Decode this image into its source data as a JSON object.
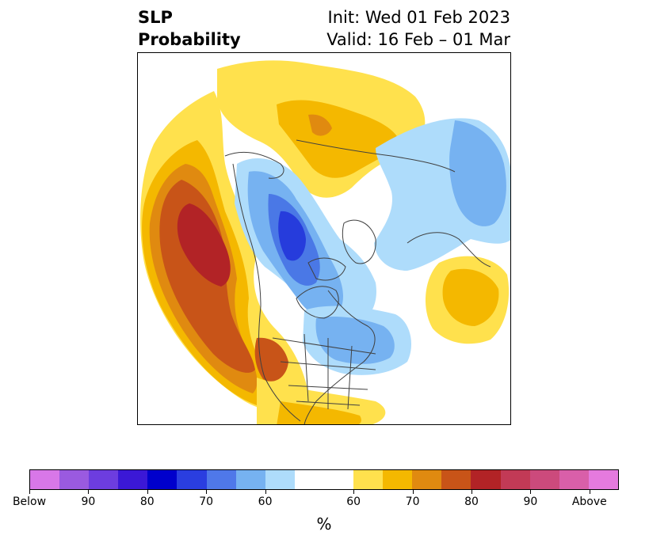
{
  "title": {
    "left_line1": "SLP",
    "left_line2": "Probability",
    "right_line1": "Init: Wed 01 Feb 2023",
    "right_line2": "Valid: 16 Feb – 01 Mar"
  },
  "map": {
    "projection": "north polar stereographic",
    "colors": {
      "above_60": "#ffe14d",
      "above_65": "#f4b800",
      "above_70": "#e08a10",
      "above_75": "#c85418",
      "above_80": "#b22326",
      "below_60": "#aedcfb",
      "below_65": "#76b2f1",
      "below_70": "#4a78e6",
      "below_75": "#263cdc",
      "coastline": "#404040"
    }
  },
  "colorbar": {
    "colors": [
      "#d877e8",
      "#9a5ae0",
      "#6d3ddf",
      "#3b18d6",
      "#0000cc",
      "#2a3ee0",
      "#4f78e9",
      "#76b2f1",
      "#aedcfb",
      "#ffffff",
      "#ffe14d",
      "#f4b800",
      "#e08a10",
      "#c85418",
      "#b22326",
      "#c23a56",
      "#cc4a7c",
      "#d95fa9",
      "#e57ade"
    ],
    "widths": [
      1,
      1,
      1,
      1,
      1,
      1,
      1,
      1,
      1,
      2,
      1,
      1,
      1,
      1,
      1,
      1,
      1,
      1,
      1
    ],
    "tick_labels": [
      "Below",
      "90",
      "80",
      "70",
      "60",
      "60",
      "70",
      "80",
      "90",
      "Above"
    ],
    "label": "%"
  }
}
